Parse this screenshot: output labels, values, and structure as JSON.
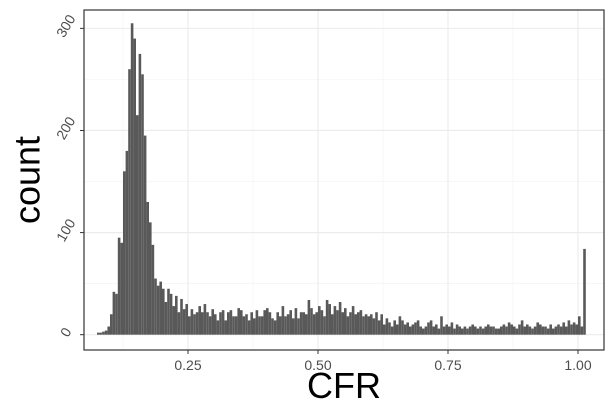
{
  "chart_data": {
    "type": "bar",
    "subtype": "histogram",
    "xlabel": "CFR",
    "ylabel": "count",
    "xlim": [
      0.05,
      1.05
    ],
    "ylim": [
      -15,
      318
    ],
    "x_ticks": [
      0.25,
      0.5,
      0.75,
      1.0
    ],
    "x_tick_labels": [
      "0.25",
      "0.50",
      "0.75",
      "1.00"
    ],
    "y_ticks": [
      0,
      100,
      200,
      300
    ],
    "y_tick_labels": [
      "0",
      "100",
      "200",
      "300"
    ],
    "bin_width": 0.005,
    "bin_start": 0.075,
    "values": [
      2,
      2,
      3,
      4,
      8,
      20,
      42,
      40,
      95,
      90,
      160,
      180,
      260,
      305,
      290,
      215,
      275,
      255,
      195,
      130,
      110,
      88,
      55,
      48,
      52,
      45,
      32,
      45,
      40,
      28,
      38,
      22,
      35,
      25,
      30,
      18,
      25,
      20,
      22,
      28,
      22,
      30,
      22,
      18,
      25,
      20,
      14,
      22,
      24,
      14,
      22,
      24,
      18,
      18,
      26,
      24,
      18,
      20,
      14,
      22,
      16,
      24,
      18,
      18,
      24,
      26,
      22,
      16,
      14,
      22,
      18,
      28,
      18,
      20,
      24,
      16,
      26,
      16,
      22,
      22,
      20,
      34,
      26,
      20,
      22,
      28,
      24,
      18,
      34,
      30,
      20,
      28,
      24,
      32,
      22,
      26,
      18,
      22,
      28,
      20,
      22,
      24,
      18,
      20,
      18,
      20,
      16,
      22,
      14,
      20,
      10,
      16,
      12,
      8,
      14,
      10,
      18,
      14,
      10,
      12,
      8,
      10,
      12,
      14,
      8,
      6,
      8,
      12,
      14,
      8,
      10,
      6,
      18,
      8,
      10,
      8,
      12,
      6,
      10,
      8,
      6,
      8,
      6,
      8,
      10,
      8,
      6,
      8,
      6,
      8,
      10,
      8,
      8,
      6,
      6,
      8,
      10,
      8,
      12,
      10,
      8,
      6,
      10,
      14,
      8,
      10,
      8,
      6,
      8,
      12,
      10,
      8,
      8,
      6,
      10,
      6,
      8,
      10,
      8,
      12,
      8,
      14,
      10,
      12,
      10,
      18,
      8,
      84
    ],
    "grid": true,
    "legend": "none",
    "colors": {
      "bar": "#595959",
      "panel_border": "#333333",
      "grid": "#ebebeb",
      "background": "#ffffff"
    }
  }
}
